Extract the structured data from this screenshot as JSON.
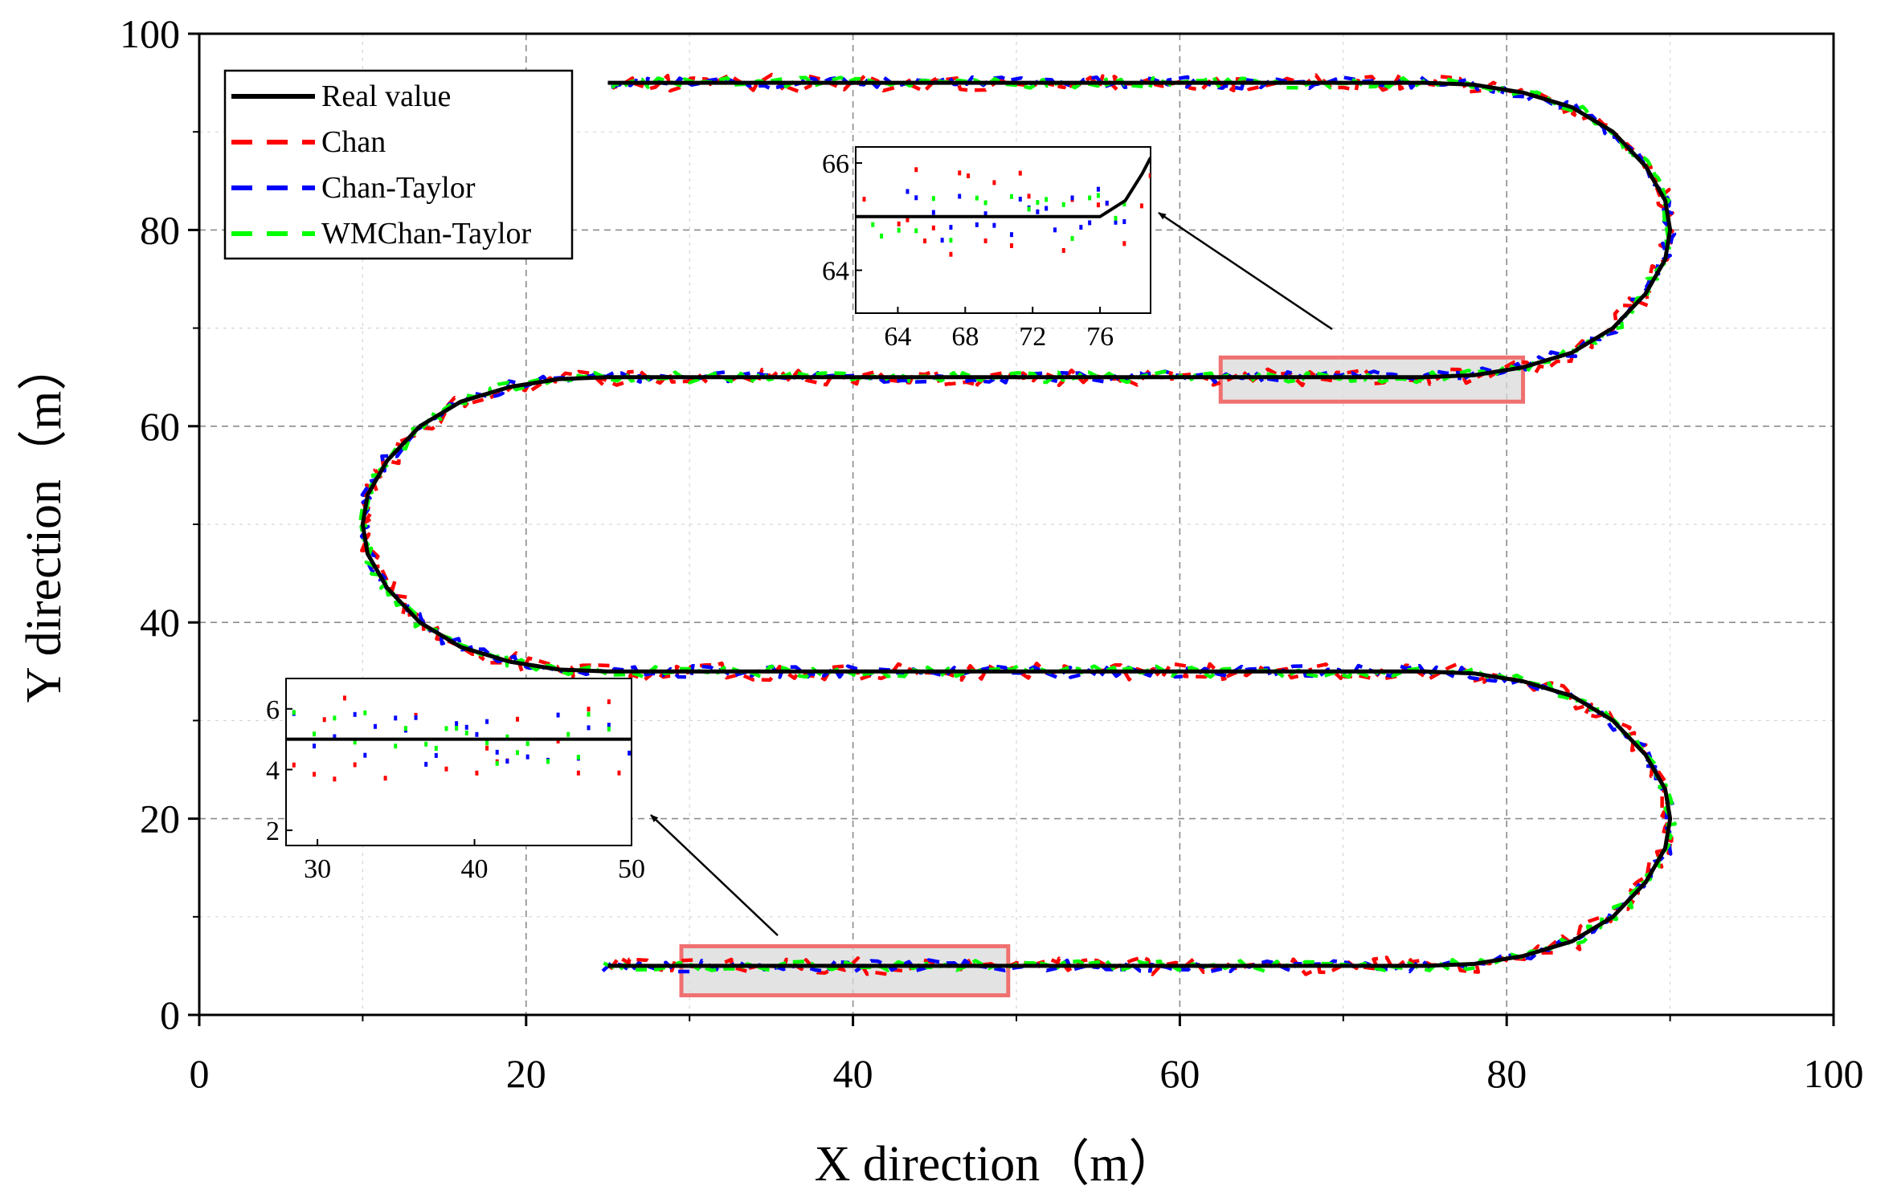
{
  "chart_data": {
    "type": "line",
    "title": "",
    "xlabel": "X direction（m）",
    "ylabel": "Y direction（m）",
    "xlim": [
      0,
      100
    ],
    "ylim": [
      0,
      100
    ],
    "xticks": [
      "0",
      "20",
      "40",
      "60",
      "80",
      "100"
    ],
    "yticks": [
      "0",
      "20",
      "40",
      "60",
      "80",
      "100"
    ],
    "grid": true,
    "legend_position": "top-left",
    "series": [
      {
        "name": "Real value",
        "color": "#000000",
        "style": "solid"
      },
      {
        "name": "Chan",
        "color": "#ff0000",
        "style": "dashed"
      },
      {
        "name": "Chan-Taylor",
        "color": "#0000ff",
        "style": "dashed"
      },
      {
        "name": "WMChan-Taylor",
        "color": "#00ff00",
        "style": "dashed"
      }
    ],
    "real_path": [
      [
        25,
        5
      ],
      [
        75,
        5
      ],
      [
        78,
        5.2
      ],
      [
        81,
        6
      ],
      [
        84,
        7.5
      ],
      [
        86.5,
        10
      ],
      [
        88.5,
        13.5
      ],
      [
        89.7,
        17
      ],
      [
        90,
        20
      ],
      [
        89.7,
        23
      ],
      [
        88.5,
        26.5
      ],
      [
        86.5,
        30
      ],
      [
        84,
        32.5
      ],
      [
        81,
        34
      ],
      [
        78,
        34.8
      ],
      [
        75,
        35
      ],
      [
        25,
        35
      ],
      [
        22,
        35.2
      ],
      [
        19,
        36
      ],
      [
        16,
        37.5
      ],
      [
        13.5,
        40
      ],
      [
        11.5,
        43.5
      ],
      [
        10.3,
        47
      ],
      [
        10,
        50
      ],
      [
        10.3,
        53
      ],
      [
        11.5,
        56.5
      ],
      [
        13.5,
        60
      ],
      [
        16,
        62.5
      ],
      [
        19,
        64
      ],
      [
        22,
        64.8
      ],
      [
        25,
        65
      ],
      [
        75,
        65
      ],
      [
        78,
        65.2
      ],
      [
        81,
        66
      ],
      [
        84,
        67.5
      ],
      [
        86.5,
        70
      ],
      [
        88.5,
        73.5
      ],
      [
        89.7,
        77
      ],
      [
        90,
        80
      ],
      [
        89.7,
        83
      ],
      [
        88.5,
        86.5
      ],
      [
        86.5,
        90
      ],
      [
        84,
        92.5
      ],
      [
        81,
        94
      ],
      [
        78,
        94.8
      ],
      [
        75,
        95
      ],
      [
        25,
        95
      ]
    ],
    "zoom_regions": [
      {
        "x_range": [
          29.5,
          49.5
        ],
        "y_range": [
          2,
          7
        ]
      },
      {
        "x_range": [
          62.5,
          81
        ],
        "y_range": [
          62.5,
          67
        ]
      }
    ],
    "insets": [
      {
        "location": "lower-left",
        "xlim": [
          28,
          50
        ],
        "ylim": [
          1.5,
          7
        ],
        "xticks": [
          "30",
          "40",
          "50"
        ],
        "yticks": [
          "2",
          "4",
          "6"
        ],
        "real_y": 5
      },
      {
        "location": "upper-center",
        "xlim": [
          61.5,
          79
        ],
        "ylim": [
          63.2,
          66.3
        ],
        "xticks": [
          "64",
          "68",
          "72",
          "76"
        ],
        "yticks": [
          "64",
          "66"
        ],
        "real_path": [
          [
            61.5,
            65
          ],
          [
            76,
            65
          ],
          [
            77.5,
            65.3
          ],
          [
            78.5,
            65.8
          ],
          [
            79,
            66.1
          ]
        ]
      }
    ]
  }
}
